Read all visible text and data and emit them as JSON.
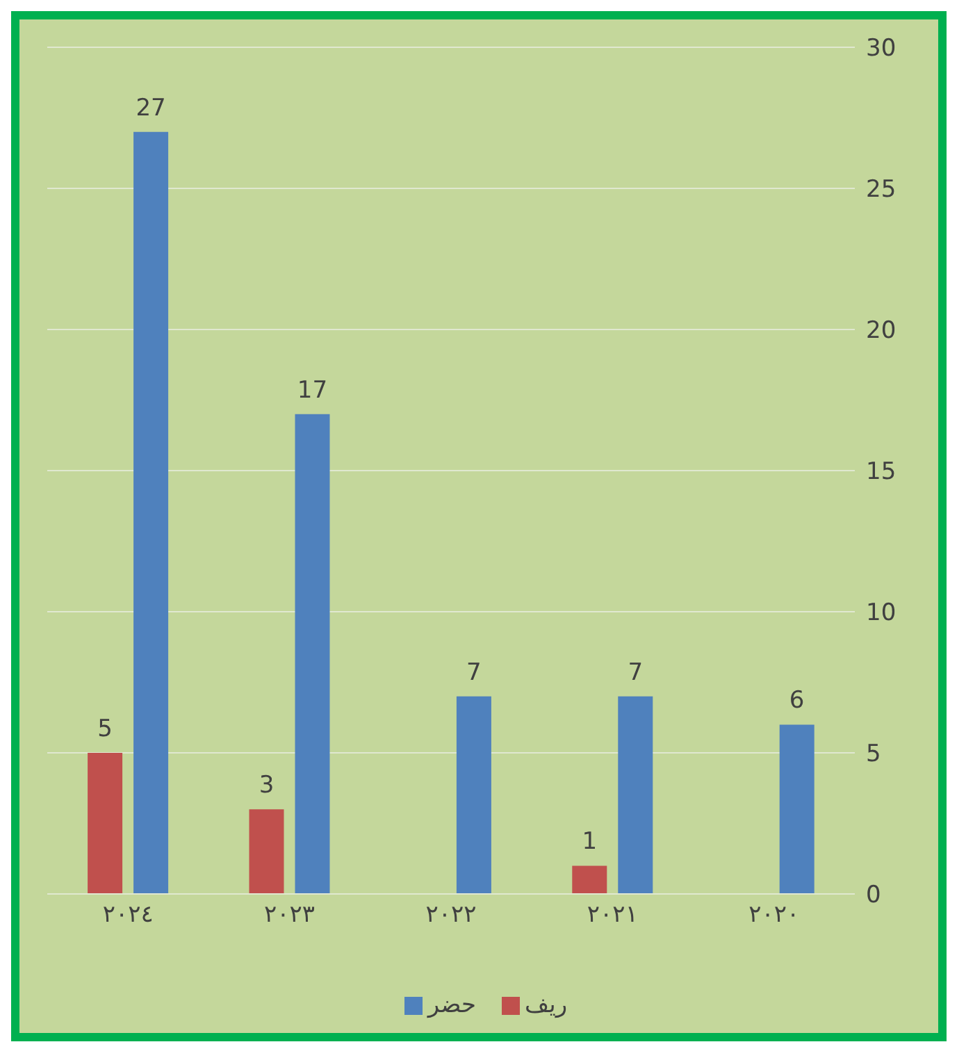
{
  "chart_data": {
    "type": "bar",
    "categories": [
      "٢٠٢٤",
      "٢٠٢٣",
      "٢٠٢٢",
      "٢٠٢١",
      "٢٠٢٠"
    ],
    "series": [
      {
        "name": "ريف",
        "color": "#c0504d",
        "values": [
          5,
          3,
          null,
          1,
          null
        ]
      },
      {
        "name": "حضر",
        "color": "#4f81bd",
        "values": [
          27,
          17,
          7,
          7,
          6
        ]
      }
    ],
    "ylim": [
      0,
      30
    ],
    "yticks": [
      0,
      5,
      10,
      15,
      20,
      25,
      30
    ],
    "grid": "y",
    "legend": "bottom",
    "data_labels": true
  }
}
